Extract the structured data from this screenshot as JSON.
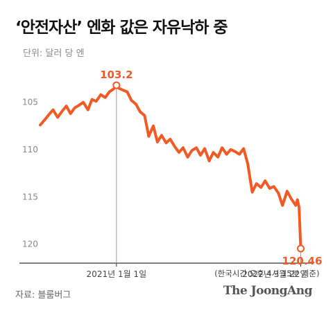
{
  "title": "‘안전자산’ 엔화 값은 자유낙하 중",
  "unit_label": "단위: 달러 당 엔",
  "source": "자료: 블룸버그",
  "logo": "The JoongAng",
  "colors": {
    "line": "#f15a24",
    "axis": "#333333",
    "tick_text": "#888888",
    "marker_line": "#999999"
  },
  "chart_data": {
    "type": "line",
    "title": "‘안전자산’ 엔화 값은 자유낙하 중",
    "ylabel": "단위: 달러 당 엔",
    "y_inverted": true,
    "ylim": [
      101,
      122
    ],
    "y_ticks": [
      {
        "value": 105,
        "label": "105"
      },
      {
        "value": 110,
        "label": "110"
      },
      {
        "value": 115,
        "label": "115"
      },
      {
        "value": 120,
        "label": "120"
      }
    ],
    "x_range": [
      "2020-07-01",
      "2022-04-22"
    ],
    "x_tick_labels": [
      {
        "date": "2021-01-01",
        "label": "2021년 1월 1일"
      },
      {
        "date": "2022-03-22",
        "label": "2022년 3월 22일"
      }
    ],
    "annotations": [
      {
        "date": "2021-01-01",
        "value": 103.2,
        "label": "103.2"
      },
      {
        "date": "2022-03-22",
        "value": 120.46,
        "label": "120.46",
        "note": "(한국시간 오후 4시 15분 기준)"
      }
    ],
    "series": [
      {
        "points": [
          [
            "2020-07-01",
            107.4
          ],
          [
            "2020-07-11",
            106.9
          ],
          [
            "2020-07-22",
            106.3
          ],
          [
            "2020-08-01",
            105.8
          ],
          [
            "2020-08-12",
            106.6
          ],
          [
            "2020-08-22",
            106.0
          ],
          [
            "2020-09-02",
            105.4
          ],
          [
            "2020-09-12",
            106.2
          ],
          [
            "2020-09-22",
            105.6
          ],
          [
            "2020-10-03",
            105.3
          ],
          [
            "2020-10-13",
            105.0
          ],
          [
            "2020-10-24",
            105.8
          ],
          [
            "2020-11-03",
            104.7
          ],
          [
            "2020-11-13",
            104.9
          ],
          [
            "2020-11-24",
            104.2
          ],
          [
            "2020-12-05",
            104.5
          ],
          [
            "2020-12-15",
            103.9
          ],
          [
            "2020-12-25",
            103.6
          ],
          [
            "2021-01-01",
            103.2
          ],
          [
            "2021-01-06",
            103.5
          ],
          [
            "2021-01-16",
            103.7
          ],
          [
            "2021-01-27",
            103.9
          ],
          [
            "2021-02-06",
            104.8
          ],
          [
            "2021-02-17",
            105.2
          ],
          [
            "2021-02-27",
            106.0
          ],
          [
            "2021-03-10",
            106.4
          ],
          [
            "2021-03-20",
            108.6
          ],
          [
            "2021-03-31",
            107.5
          ],
          [
            "2021-04-10",
            109.2
          ],
          [
            "2021-04-20",
            108.5
          ],
          [
            "2021-05-01",
            109.3
          ],
          [
            "2021-05-11",
            108.9
          ],
          [
            "2021-05-22",
            109.7
          ],
          [
            "2021-06-01",
            110.3
          ],
          [
            "2021-06-11",
            109.8
          ],
          [
            "2021-06-22",
            110.8
          ],
          [
            "2021-07-02",
            110.1
          ],
          [
            "2021-07-13",
            109.8
          ],
          [
            "2021-07-23",
            110.6
          ],
          [
            "2021-08-02",
            109.9
          ],
          [
            "2021-08-13",
            111.2
          ],
          [
            "2021-08-23",
            110.3
          ],
          [
            "2021-09-03",
            110.8
          ],
          [
            "2021-09-13",
            109.8
          ],
          [
            "2021-09-24",
            110.5
          ],
          [
            "2021-10-04",
            110.0
          ],
          [
            "2021-10-14",
            110.2
          ],
          [
            "2021-10-25",
            110.5
          ],
          [
            "2021-11-04",
            109.9
          ],
          [
            "2021-11-14",
            111.5
          ],
          [
            "2021-11-25",
            114.5
          ],
          [
            "2021-12-05",
            113.6
          ],
          [
            "2021-12-16",
            114.0
          ],
          [
            "2021-12-26",
            113.3
          ],
          [
            "2022-01-06",
            114.1
          ],
          [
            "2022-01-16",
            113.9
          ],
          [
            "2022-01-27",
            114.6
          ],
          [
            "2022-02-06",
            115.9
          ],
          [
            "2022-02-17",
            114.4
          ],
          [
            "2022-02-27",
            115.2
          ],
          [
            "2022-03-10",
            115.9
          ],
          [
            "2022-03-14",
            115.3
          ],
          [
            "2022-03-18",
            116.1
          ],
          [
            "2022-03-22",
            120.46
          ]
        ]
      }
    ]
  }
}
